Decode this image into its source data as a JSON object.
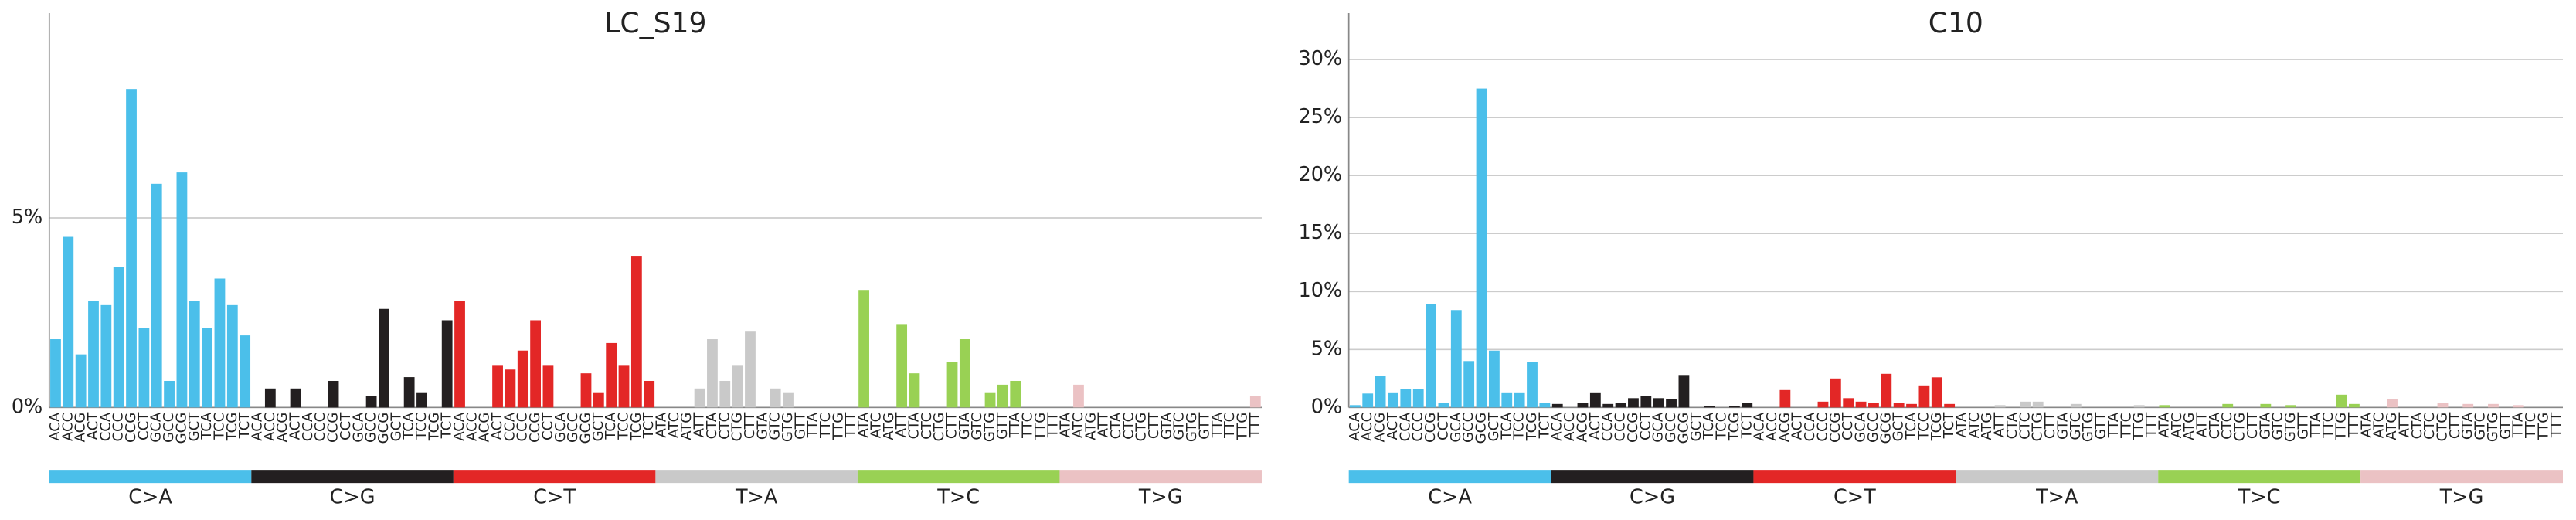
{
  "chart_data": [
    {
      "type": "bar",
      "title": "LC_S19",
      "categories": [
        "ACA",
        "ACC",
        "ACG",
        "ACT",
        "CCA",
        "CCC",
        "CCG",
        "CCT",
        "GCA",
        "GCC",
        "GCG",
        "GCT",
        "TCA",
        "TCC",
        "TCG",
        "TCT",
        "ACA",
        "ACC",
        "ACG",
        "ACT",
        "CCA",
        "CCC",
        "CCG",
        "CCT",
        "GCA",
        "GCC",
        "GCG",
        "GCT",
        "TCA",
        "TCC",
        "TCG",
        "TCT",
        "ACA",
        "ACC",
        "ACG",
        "ACT",
        "CCA",
        "CCC",
        "CCG",
        "CCT",
        "GCA",
        "GCC",
        "GCG",
        "GCT",
        "TCA",
        "TCC",
        "TCG",
        "TCT",
        "ATA",
        "ATC",
        "ATG",
        "ATT",
        "CTA",
        "CTC",
        "CTG",
        "CTT",
        "GTA",
        "GTC",
        "GTG",
        "GTT",
        "TTA",
        "TTC",
        "TTG",
        "TTT",
        "ATA",
        "ATC",
        "ATG",
        "ATT",
        "CTA",
        "CTC",
        "CTG",
        "CTT",
        "GTA",
        "GTC",
        "GTG",
        "GTT",
        "TTA",
        "TTC",
        "TTG",
        "TTT",
        "ATA",
        "ATC",
        "ATG",
        "ATT",
        "CTA",
        "CTC",
        "CTG",
        "CTT",
        "GTA",
        "GTC",
        "GTG",
        "GTT",
        "TTA",
        "TTC",
        "TTG",
        "TTT"
      ],
      "values": [
        1.8,
        4.5,
        1.4,
        2.8,
        2.7,
        3.7,
        8.4,
        2.1,
        5.9,
        0.7,
        6.2,
        2.8,
        2.1,
        3.4,
        2.7,
        1.9,
        0,
        0.5,
        0,
        0.5,
        0,
        0,
        0.7,
        0,
        0,
        0.3,
        2.6,
        0,
        0.8,
        0.4,
        0,
        2.3,
        2.8,
        0,
        0,
        1.1,
        1.0,
        1.5,
        2.3,
        1.1,
        0,
        0,
        0.9,
        0.4,
        1.7,
        1.1,
        4.0,
        0.7,
        0,
        0,
        0,
        0.5,
        1.8,
        0.7,
        1.1,
        2.0,
        0,
        0.5,
        0.4,
        0,
        0,
        0,
        0,
        0,
        3.1,
        0,
        0,
        2.2,
        0.9,
        0,
        0,
        1.2,
        1.8,
        0,
        0.4,
        0.6,
        0.7,
        0,
        0,
        0,
        0,
        0.6,
        0,
        0,
        0,
        0,
        0,
        0,
        0,
        0,
        0,
        0,
        0,
        0,
        0,
        0.3
      ],
      "groups": [
        {
          "name": "C>A",
          "color": "#4bbfea"
        },
        {
          "name": "C>G",
          "color": "#231f20"
        },
        {
          "name": "C>T",
          "color": "#e32726"
        },
        {
          "name": "T>A",
          "color": "#c9c9c9"
        },
        {
          "name": "T>C",
          "color": "#99d154"
        },
        {
          "name": "T>G",
          "color": "#ebc2c4"
        }
      ],
      "ylim": [
        0,
        10.4
      ],
      "yticks": [
        {
          "value": 0,
          "label": "0%"
        },
        {
          "value": 5,
          "label": "5%"
        }
      ],
      "grid": true
    },
    {
      "type": "bar",
      "title": "C10",
      "categories": [
        "ACA",
        "ACC",
        "ACG",
        "ACT",
        "CCA",
        "CCC",
        "CCG",
        "CCT",
        "GCA",
        "GCC",
        "GCG",
        "GCT",
        "TCA",
        "TCC",
        "TCG",
        "TCT",
        "ACA",
        "ACC",
        "ACG",
        "ACT",
        "CCA",
        "CCC",
        "CCG",
        "CCT",
        "GCA",
        "GCC",
        "GCG",
        "GCT",
        "TCA",
        "TCC",
        "TCG",
        "TCT",
        "ACA",
        "ACC",
        "ACG",
        "ACT",
        "CCA",
        "CCC",
        "CCG",
        "CCT",
        "GCA",
        "GCC",
        "GCG",
        "GCT",
        "TCA",
        "TCC",
        "TCG",
        "TCT",
        "ATA",
        "ATC",
        "ATG",
        "ATT",
        "CTA",
        "CTC",
        "CTG",
        "CTT",
        "GTA",
        "GTC",
        "GTG",
        "GTT",
        "TTA",
        "TTC",
        "TTG",
        "TTT",
        "ATA",
        "ATC",
        "ATG",
        "ATT",
        "CTA",
        "CTC",
        "CTG",
        "CTT",
        "GTA",
        "GTC",
        "GTG",
        "GTT",
        "TTA",
        "TTC",
        "TTG",
        "TTT",
        "ATA",
        "ATC",
        "ATG",
        "ATT",
        "CTA",
        "CTC",
        "CTG",
        "CTT",
        "GTA",
        "GTC",
        "GTG",
        "GTT",
        "TTA",
        "TTC",
        "TTG",
        "TTT"
      ],
      "values": [
        0.2,
        1.2,
        2.7,
        1.3,
        1.6,
        1.6,
        8.9,
        0.4,
        8.4,
        4.0,
        27.5,
        4.9,
        1.3,
        1.3,
        3.9,
        0.4,
        0.3,
        0,
        0.4,
        1.3,
        0.3,
        0.4,
        0.8,
        1.0,
        0.8,
        0.7,
        2.8,
        0,
        0.1,
        0,
        0.1,
        0.4,
        0,
        0,
        1.5,
        0,
        0,
        0.5,
        2.5,
        0.8,
        0.5,
        0.4,
        2.9,
        0.4,
        0.3,
        1.9,
        2.6,
        0.3,
        0,
        0,
        0,
        0.2,
        0,
        0.5,
        0.5,
        0,
        0,
        0.3,
        0,
        0,
        0,
        0,
        0.2,
        0,
        0.2,
        0,
        0,
        0,
        0,
        0.3,
        0,
        0,
        0.3,
        0,
        0.2,
        0,
        0,
        0,
        1.1,
        0.3,
        0,
        0,
        0.7,
        0,
        0,
        0,
        0.4,
        0,
        0.3,
        0,
        0.3,
        0,
        0.2,
        0,
        0,
        0
      ],
      "groups": [
        {
          "name": "C>A",
          "color": "#4bbfea"
        },
        {
          "name": "C>G",
          "color": "#231f20"
        },
        {
          "name": "C>T",
          "color": "#e32726"
        },
        {
          "name": "T>A",
          "color": "#c9c9c9"
        },
        {
          "name": "T>C",
          "color": "#99d154"
        },
        {
          "name": "T>G",
          "color": "#ebc2c4"
        }
      ],
      "ylim": [
        0,
        34
      ],
      "yticks": [
        {
          "value": 0,
          "label": "0%"
        },
        {
          "value": 5,
          "label": "5%"
        },
        {
          "value": 10,
          "label": "10%"
        },
        {
          "value": 15,
          "label": "15%"
        },
        {
          "value": 20,
          "label": "20%"
        },
        {
          "value": 25,
          "label": "25%"
        },
        {
          "value": 30,
          "label": "30%"
        }
      ],
      "grid": true
    }
  ]
}
